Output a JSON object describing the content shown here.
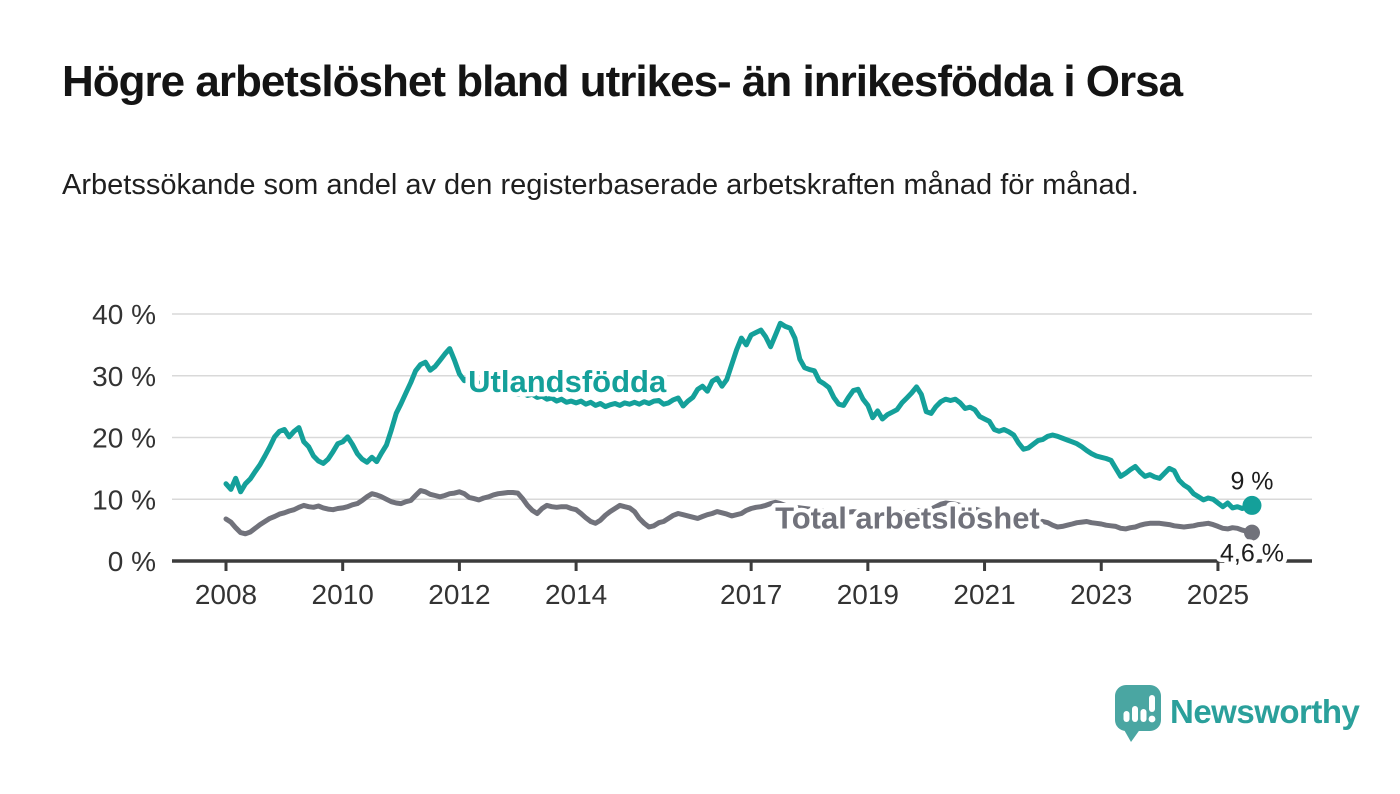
{
  "header": {
    "title": "Högre arbetslöshet bland utrikes- än inrikesfödda i Orsa",
    "subtitle": "Arbetssökande som andel av den registerbaserade arbetskraften månad för månad."
  },
  "colors": {
    "accent_teal": "#14a09a",
    "neutral_gray": "#71727b",
    "grid": "#d9d9d9",
    "axis": "#3c3c3c",
    "axis_text": "#333333",
    "value_label_text": "#1d1d1d"
  },
  "branding": {
    "name": "Newsworthy",
    "icon": "speech-bubble-bar-chart",
    "icon_color": "#4aa6a2",
    "text_color": "#2aa09b"
  },
  "chart_data": {
    "type": "line",
    "x_start_year": 2008,
    "points_per_year": 12,
    "x_end_label": "2025-08",
    "ylim": [
      0,
      42
    ],
    "grid": true,
    "legend_position": "inline-labels",
    "y_ticks": [
      {
        "value": 0,
        "label": "0 %"
      },
      {
        "value": 10,
        "label": "10 %"
      },
      {
        "value": 20,
        "label": "20 %"
      },
      {
        "value": 30,
        "label": "30 %"
      },
      {
        "value": 40,
        "label": "40 %"
      }
    ],
    "x_ticks": [
      {
        "year": 2008,
        "label": "2008"
      },
      {
        "year": 2010,
        "label": "2010"
      },
      {
        "year": 2012,
        "label": "2012"
      },
      {
        "year": 2014,
        "label": "2014"
      },
      {
        "year": 2017,
        "label": "2017"
      },
      {
        "year": 2019,
        "label": "2019"
      },
      {
        "year": 2021,
        "label": "2021"
      },
      {
        "year": 2023,
        "label": "2023"
      },
      {
        "year": 2025,
        "label": "2025"
      }
    ],
    "series": [
      {
        "id": "utlandsfodda",
        "name": "Utlandsfödda",
        "color": "#14a09a",
        "end_label": "9 %",
        "end_value": 9.0,
        "label_anchor": {
          "year": 2012.15,
          "pct": 27.4
        },
        "values": [
          12.5,
          11.6,
          13.4,
          11.2,
          12.5,
          13.3,
          14.5,
          15.6,
          17.0,
          18.5,
          20.1,
          21.0,
          21.3,
          20.1,
          21.0,
          21.6,
          19.3,
          18.5,
          17.0,
          16.2,
          15.8,
          16.5,
          17.7,
          19.0,
          19.3,
          20.1,
          18.9,
          17.4,
          16.5,
          16.0,
          16.8,
          16.1,
          17.5,
          18.8,
          21.2,
          23.9,
          25.5,
          27.2,
          28.9,
          30.8,
          31.8,
          32.2,
          30.9,
          31.5,
          32.5,
          33.5,
          34.4,
          32.5,
          30.3,
          29.2,
          29.8,
          29.3,
          28.8,
          28.5,
          28.8,
          28.2,
          27.8,
          28.0,
          27.5,
          27.2,
          27.0,
          27.3,
          26.8,
          27.0,
          26.5,
          26.7,
          26.2,
          26.4,
          25.9,
          26.2,
          25.7,
          25.9,
          25.6,
          25.9,
          25.4,
          25.7,
          25.2,
          25.5,
          25.0,
          25.3,
          25.5,
          25.2,
          25.6,
          25.4,
          25.7,
          25.4,
          25.8,
          25.5,
          25.9,
          26.0,
          25.4,
          25.6,
          26.1,
          26.4,
          25.1,
          25.9,
          26.5,
          27.8,
          28.3,
          27.5,
          29.1,
          29.6,
          28.3,
          29.4,
          31.8,
          34.2,
          36.1,
          35.0,
          36.6,
          37.0,
          37.4,
          36.3,
          34.7,
          36.6,
          38.5,
          38.0,
          37.7,
          36.1,
          32.7,
          31.3,
          31.0,
          30.8,
          29.2,
          28.7,
          28.1,
          26.5,
          25.4,
          25.2,
          26.5,
          27.6,
          27.8,
          26.2,
          25.2,
          23.2,
          24.3,
          23.0,
          23.7,
          24.1,
          24.5,
          25.6,
          26.4,
          27.2,
          28.2,
          27.0,
          24.2,
          23.9,
          25.0,
          25.8,
          26.2,
          26.0,
          26.2,
          25.6,
          24.7,
          24.9,
          24.5,
          23.4,
          23.0,
          22.6,
          21.3,
          21.0,
          21.3,
          20.9,
          20.4,
          19.1,
          18.1,
          18.3,
          18.9,
          19.5,
          19.7,
          20.2,
          20.4,
          20.2,
          19.9,
          19.6,
          19.3,
          19.0,
          18.5,
          17.9,
          17.4,
          17.0,
          16.8,
          16.6,
          16.3,
          15.0,
          13.7,
          14.2,
          14.8,
          15.3,
          14.4,
          13.7,
          14.0,
          13.6,
          13.4,
          14.2,
          15.0,
          14.6,
          13.1,
          12.3,
          11.8,
          10.9,
          10.4,
          9.9,
          10.2,
          10.0,
          9.4,
          8.8,
          9.4,
          8.6,
          8.8,
          8.5,
          8.8,
          9.0
        ]
      },
      {
        "id": "total",
        "name": "Total arbetslöshet",
        "color": "#71727b",
        "end_label": "4,6 %",
        "end_value": 4.6,
        "label_anchor": {
          "year": 2017.41,
          "pct": 5.3
        },
        "values": [
          6.8,
          6.3,
          5.4,
          4.6,
          4.4,
          4.7,
          5.3,
          5.9,
          6.4,
          6.9,
          7.2,
          7.6,
          7.8,
          8.1,
          8.3,
          8.7,
          9.0,
          8.8,
          8.7,
          8.9,
          8.6,
          8.4,
          8.3,
          8.5,
          8.6,
          8.8,
          9.1,
          9.3,
          9.8,
          10.4,
          10.9,
          10.7,
          10.4,
          10.0,
          9.6,
          9.4,
          9.3,
          9.6,
          9.8,
          10.6,
          11.4,
          11.2,
          10.8,
          10.6,
          10.4,
          10.6,
          10.9,
          11.0,
          11.2,
          10.9,
          10.3,
          10.1,
          9.9,
          10.2,
          10.4,
          10.7,
          10.9,
          11.0,
          11.1,
          11.1,
          11.0,
          10.1,
          9.0,
          8.2,
          7.7,
          8.5,
          9.0,
          8.8,
          8.7,
          8.8,
          8.8,
          8.5,
          8.3,
          7.7,
          7.0,
          6.4,
          6.1,
          6.6,
          7.4,
          8.0,
          8.5,
          9.0,
          8.8,
          8.6,
          8.0,
          6.9,
          6.1,
          5.5,
          5.7,
          6.2,
          6.4,
          6.9,
          7.4,
          7.7,
          7.5,
          7.3,
          7.1,
          6.9,
          7.2,
          7.5,
          7.7,
          8.0,
          7.8,
          7.6,
          7.3,
          7.5,
          7.7,
          8.2,
          8.5,
          8.7,
          8.8,
          9.0,
          9.3,
          9.5,
          9.3,
          9.0,
          8.8,
          8.7,
          8.6,
          8.5,
          8.4,
          8.3,
          8.2,
          8.0,
          7.9,
          7.8,
          7.7,
          7.8,
          7.9,
          8.0,
          7.9,
          7.8,
          7.7,
          7.6,
          7.5,
          7.4,
          7.5,
          7.6,
          7.7,
          7.8,
          7.9,
          8.0,
          8.1,
          8.2,
          8.3,
          8.4,
          8.8,
          9.2,
          9.4,
          9.3,
          9.2,
          9.0,
          8.8,
          8.6,
          8.4,
          8.2,
          8.0,
          7.8,
          7.6,
          7.4,
          7.2,
          7.0,
          6.9,
          6.8,
          6.7,
          6.6,
          6.5,
          6.5,
          6.4,
          6.2,
          5.8,
          5.5,
          5.6,
          5.8,
          6.0,
          6.2,
          6.3,
          6.4,
          6.2,
          6.1,
          6.0,
          5.8,
          5.7,
          5.6,
          5.3,
          5.2,
          5.4,
          5.5,
          5.8,
          6.0,
          6.1,
          6.1,
          6.1,
          6.0,
          5.9,
          5.7,
          5.6,
          5.5,
          5.6,
          5.7,
          5.9,
          6.0,
          6.1,
          5.9,
          5.6,
          5.3,
          5.2,
          5.4,
          5.3,
          5.0,
          4.8,
          4.6
        ]
      }
    ]
  }
}
